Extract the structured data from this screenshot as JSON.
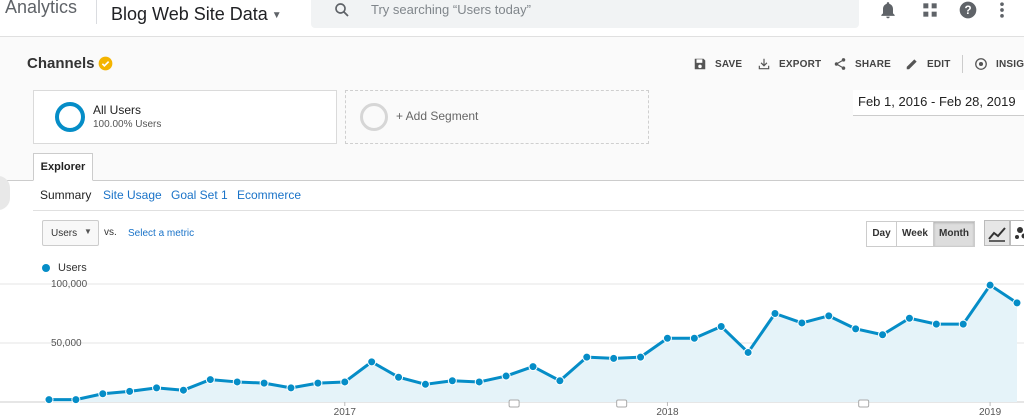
{
  "topbar": {
    "app_title": "Analytics",
    "property_name": "Blog Web Site Data",
    "search_placeholder": "Try searching “Users today”",
    "icons": [
      "bell-icon",
      "apps-grid-icon",
      "help-icon",
      "more-vert-icon"
    ]
  },
  "report": {
    "title": "Channels",
    "actions": [
      {
        "label": "SAVE",
        "icon": "save-icon"
      },
      {
        "label": "EXPORT",
        "icon": "export-icon"
      },
      {
        "label": "SHARE",
        "icon": "share-icon"
      },
      {
        "label": "EDIT",
        "icon": "edit-icon"
      },
      {
        "label": "INSIGH",
        "icon": "insights-icon"
      }
    ]
  },
  "segments": {
    "active": {
      "name": "All Users",
      "percent": "100.00% Users",
      "color": "#058dc7"
    },
    "add_label": "+ Add Segment"
  },
  "date_range": "Feb 1, 2016 - Feb 28, 2019",
  "tabs": {
    "main": "Explorer",
    "sub": [
      "Summary",
      "Site Usage",
      "Goal Set 1",
      "Ecommerce"
    ]
  },
  "controls": {
    "metric": "Users",
    "vs": "vs.",
    "select_metric": "Select a metric",
    "granularity": [
      "Day",
      "Week",
      "Month"
    ],
    "granularity_selected": "Month"
  },
  "chart_data": {
    "type": "area",
    "series": [
      {
        "name": "Users",
        "color": "#058dc7",
        "values": [
          2000,
          2000,
          7000,
          9000,
          12000,
          10000,
          19000,
          17000,
          16000,
          12000,
          16000,
          17000,
          34000,
          21000,
          15000,
          18000,
          17000,
          22000,
          30000,
          18000,
          38000,
          37000,
          38000,
          54000,
          54000,
          64000,
          42000,
          75000,
          67000,
          73000,
          62000,
          57000,
          71000,
          66000,
          66000,
          99000,
          84000
        ]
      }
    ],
    "x_labels": [
      "2017",
      "2018",
      "2019"
    ],
    "y_ticks": [
      {
        "label": "100,000",
        "value": 100000
      },
      {
        "label": "50,000",
        "value": 50000
      }
    ],
    "ylim": [
      0,
      100000
    ],
    "grid": true,
    "legend": "top-left"
  }
}
